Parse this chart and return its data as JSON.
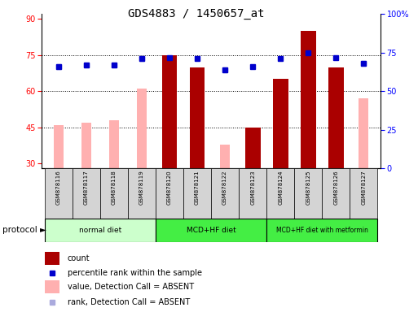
{
  "title": "GDS4883 / 1450657_at",
  "samples": [
    "GSM878116",
    "GSM878117",
    "GSM878118",
    "GSM878119",
    "GSM878120",
    "GSM878121",
    "GSM878122",
    "GSM878123",
    "GSM878124",
    "GSM878125",
    "GSM878126",
    "GSM878127"
  ],
  "count_values": [
    null,
    null,
    null,
    null,
    75,
    70,
    null,
    45,
    65,
    85,
    70,
    null
  ],
  "value_absent": [
    46,
    47,
    48,
    61,
    null,
    null,
    38,
    null,
    null,
    null,
    null,
    57
  ],
  "percentile_rank": [
    66,
    67,
    67,
    71,
    72,
    71,
    64,
    66,
    71,
    75,
    72,
    68
  ],
  "rank_absent": [
    66,
    67,
    67,
    71,
    null,
    null,
    64,
    null,
    null,
    null,
    null,
    68
  ],
  "ylim_left": [
    28,
    92
  ],
  "ylim_right": [
    0,
    100
  ],
  "yticks_left": [
    30,
    45,
    60,
    75,
    90
  ],
  "yticks_right": [
    0,
    25,
    50,
    75,
    100
  ],
  "ytick_labels_right": [
    "0",
    "25",
    "50",
    "75",
    "100%"
  ],
  "grid_lines": [
    45,
    60,
    75
  ],
  "protocol_groups": [
    {
      "label": "normal diet",
      "start": 0,
      "end": 3,
      "color": "#ccffcc"
    },
    {
      "label": "MCD+HF diet",
      "start": 4,
      "end": 7,
      "color": "#44ee44"
    },
    {
      "label": "MCD+HF diet with metformin",
      "start": 8,
      "end": 11,
      "color": "#44ee44"
    }
  ],
  "bar_color_dark_red": "#AA0000",
  "bar_color_light_pink": "#FFB0B0",
  "dot_color_blue": "#0000CC",
  "dot_color_light_blue": "#aaaadd",
  "legend_items": [
    {
      "label": "count",
      "color": "#AA0000",
      "type": "bar"
    },
    {
      "label": "percentile rank within the sample",
      "color": "#0000CC",
      "type": "dot"
    },
    {
      "label": "value, Detection Call = ABSENT",
      "color": "#FFB0B0",
      "type": "bar"
    },
    {
      "label": "rank, Detection Call = ABSENT",
      "color": "#aaaadd",
      "type": "dot"
    }
  ]
}
